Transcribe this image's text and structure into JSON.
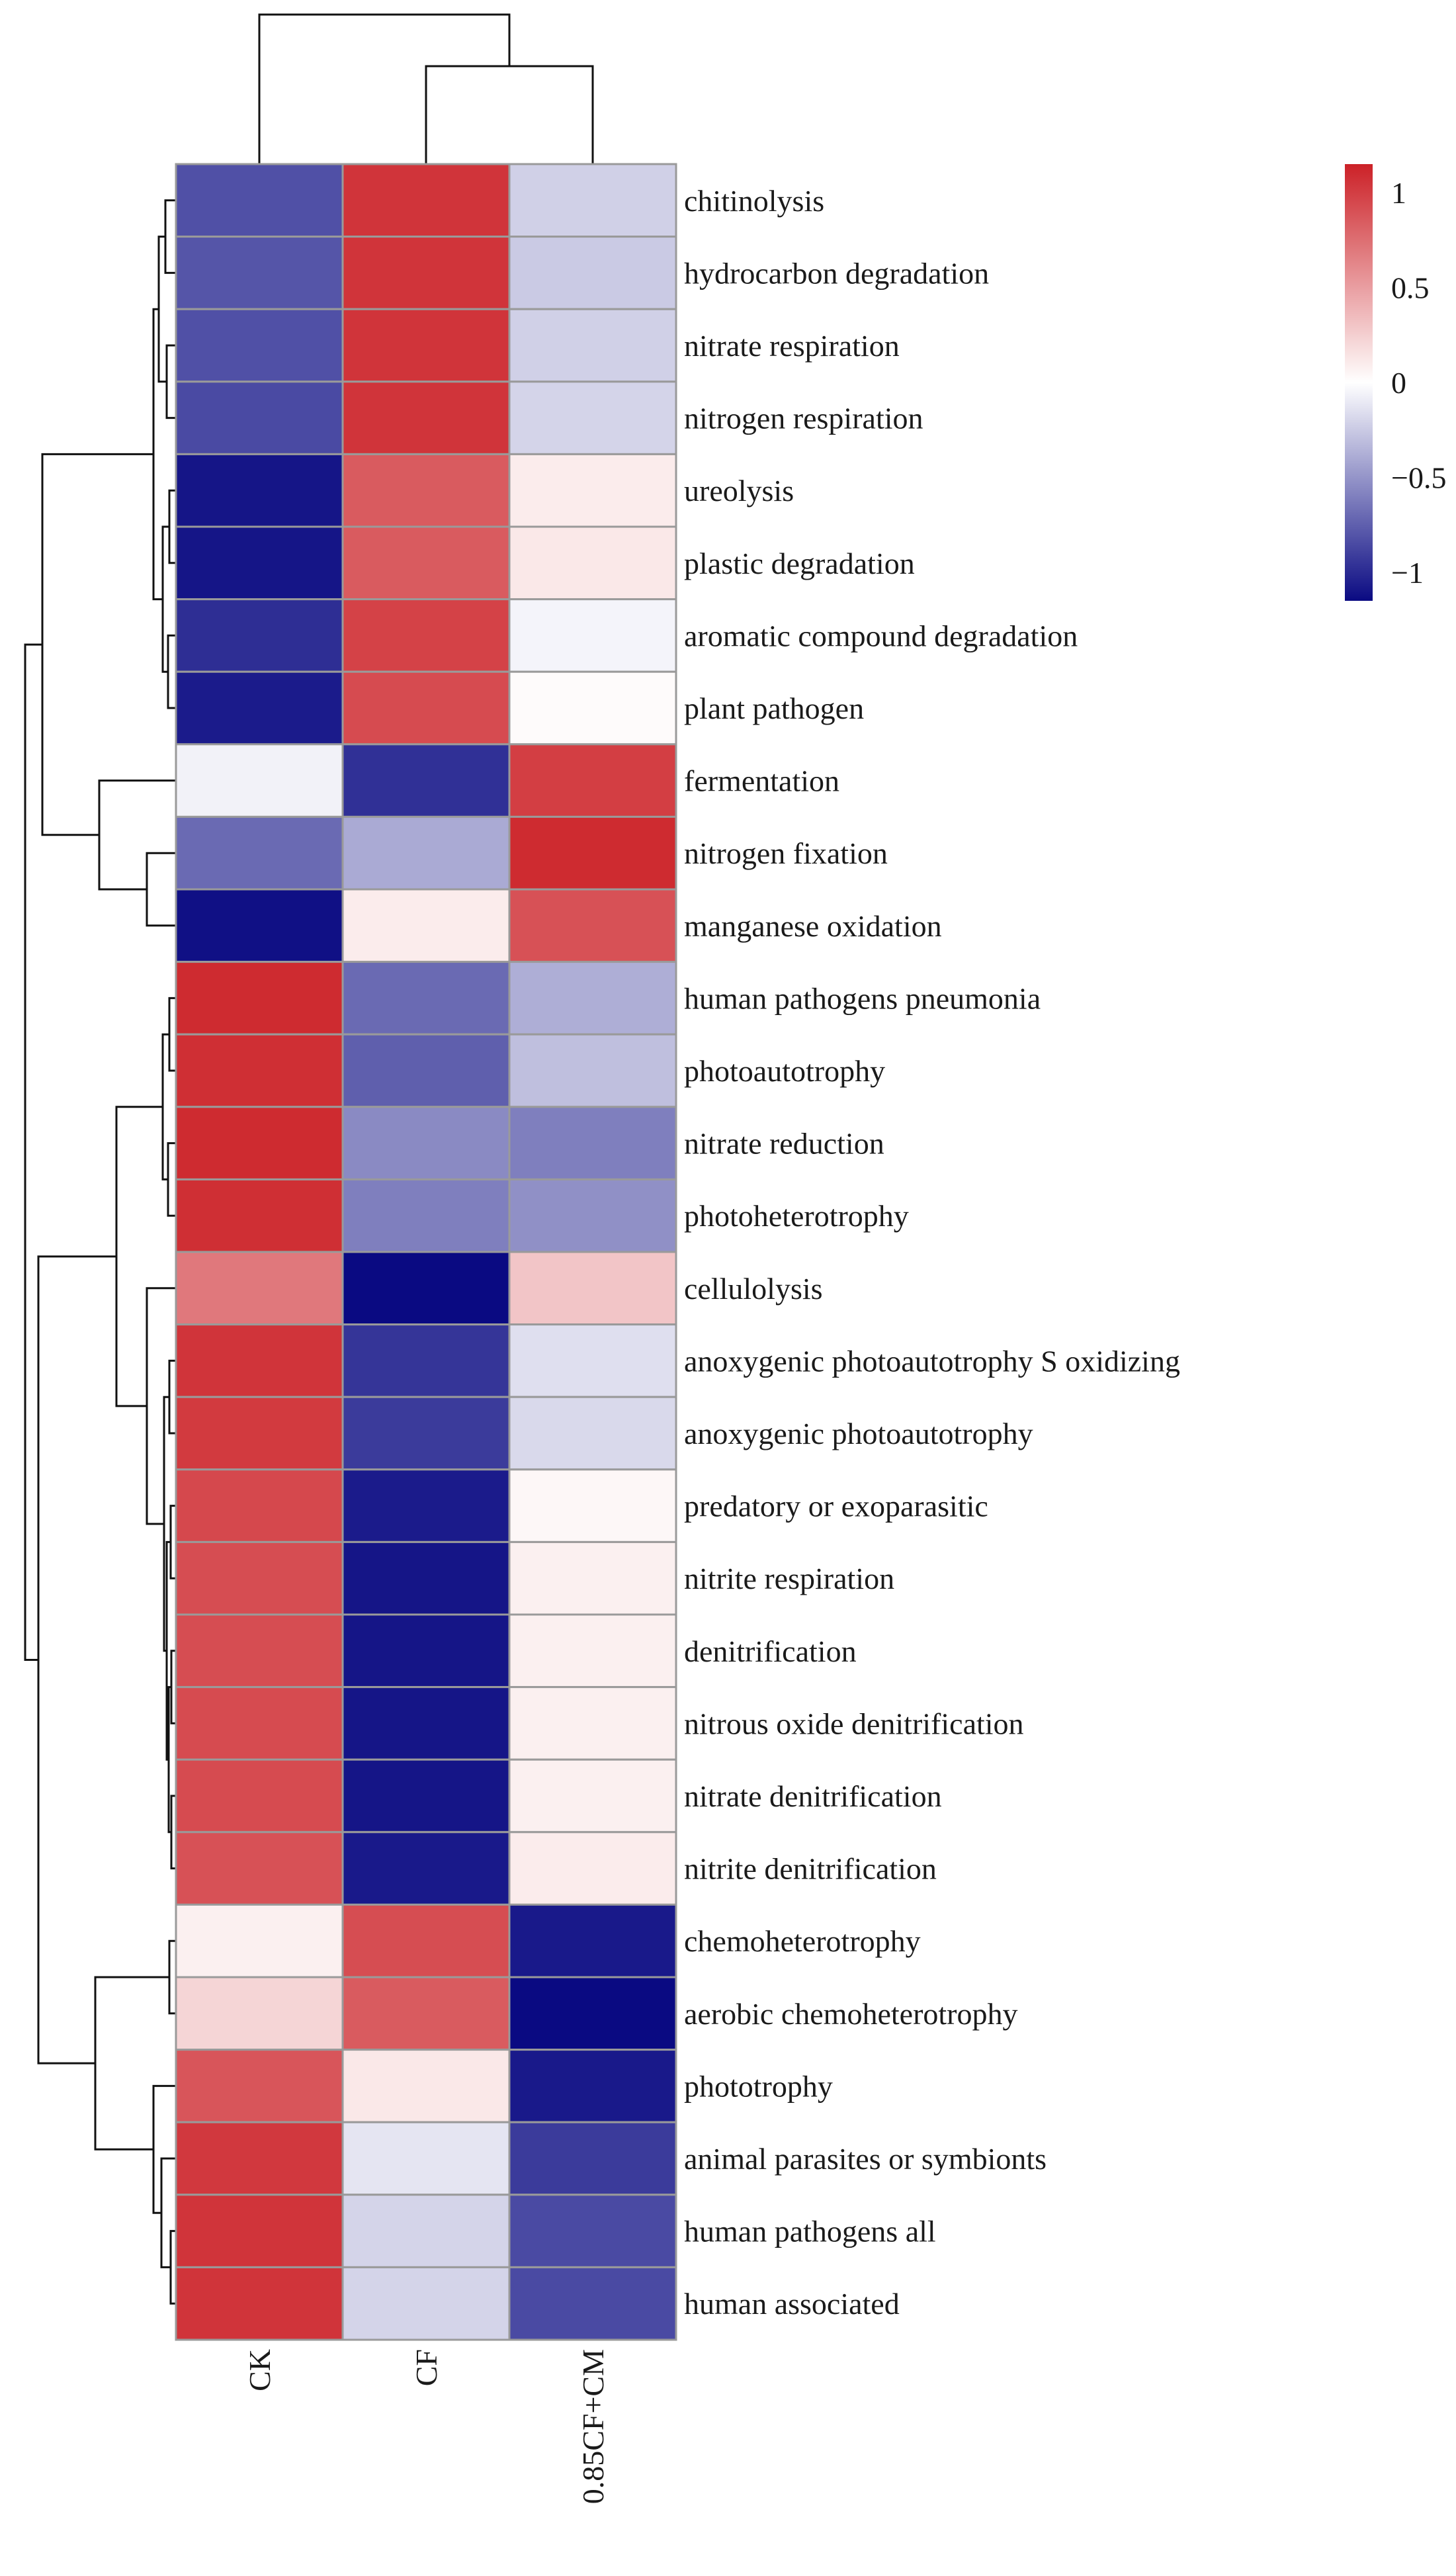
{
  "chart_data": {
    "type": "heatmap",
    "title": "",
    "columns": [
      "CK",
      "CF",
      "0.85CF+CM"
    ],
    "rows": [
      "chitinolysis",
      "hydrocarbon degradation",
      "nitrate respiration",
      "nitrogen respiration",
      "ureolysis",
      "plastic degradation",
      "aromatic compound degradation",
      "plant pathogen",
      "fermentation",
      "nitrogen fixation",
      "manganese oxidation",
      "human pathogens pneumonia",
      "photoautotrophy",
      "nitrate reduction",
      "photoheterotrophy",
      "cellulolysis",
      "anoxygenic photoautotrophy S oxidizing",
      "anoxygenic photoautotrophy",
      "predatory or exoparasitic",
      "nitrite respiration",
      "denitrification",
      "nitrous oxide denitrification",
      "nitrate denitrification",
      "nitrite denitrification",
      "chemoheterotrophy",
      "aerobic chemoheterotrophy",
      "phototrophy",
      "animal parasites or symbionts",
      "human pathogens all",
      "human associated"
    ],
    "values": [
      [
        -0.82,
        1.05,
        -0.22
      ],
      [
        -0.8,
        1.05,
        -0.25
      ],
      [
        -0.82,
        1.05,
        -0.22
      ],
      [
        -0.85,
        1.05,
        -0.2
      ],
      [
        -1.1,
        0.85,
        0.1
      ],
      [
        -1.1,
        0.85,
        0.12
      ],
      [
        -0.98,
        0.98,
        -0.05
      ],
      [
        -1.07,
        0.93,
        0.02
      ],
      [
        -0.06,
        -0.97,
        1.0
      ],
      [
        -0.7,
        -0.4,
        1.1
      ],
      [
        -1.12,
        0.1,
        0.9
      ],
      [
        1.1,
        -0.7,
        -0.38
      ],
      [
        1.08,
        -0.75,
        -0.3
      ],
      [
        1.1,
        -0.55,
        -0.6
      ],
      [
        1.08,
        -0.6,
        -0.52
      ],
      [
        0.7,
        -1.15,
        0.3
      ],
      [
        1.05,
        -0.95,
        -0.15
      ],
      [
        1.02,
        -0.92,
        -0.18
      ],
      [
        0.95,
        -1.07,
        0.04
      ],
      [
        0.92,
        -1.1,
        0.08
      ],
      [
        0.92,
        -1.1,
        0.08
      ],
      [
        0.93,
        -1.1,
        0.08
      ],
      [
        0.93,
        -1.1,
        0.08
      ],
      [
        0.9,
        -1.08,
        0.1
      ],
      [
        0.08,
        0.92,
        -1.08
      ],
      [
        0.22,
        0.85,
        -1.15
      ],
      [
        0.88,
        0.12,
        -1.08
      ],
      [
        1.03,
        -0.12,
        -0.92
      ],
      [
        1.05,
        -0.2,
        -0.85
      ],
      [
        1.05,
        -0.2,
        -0.85
      ]
    ],
    "colorbar": {
      "ticks": [
        1,
        0.5,
        0,
        -0.5,
        -1
      ],
      "tick_labels": [
        "1",
        "0.5",
        "0",
        "−0.5",
        "−1"
      ],
      "range": [
        -1.15,
        1.15
      ],
      "low_color": "#0a0a82",
      "mid_color": "#ffffff",
      "high_color": "#cc2127"
    },
    "row_dendrogram": true,
    "column_dendrogram": true
  }
}
